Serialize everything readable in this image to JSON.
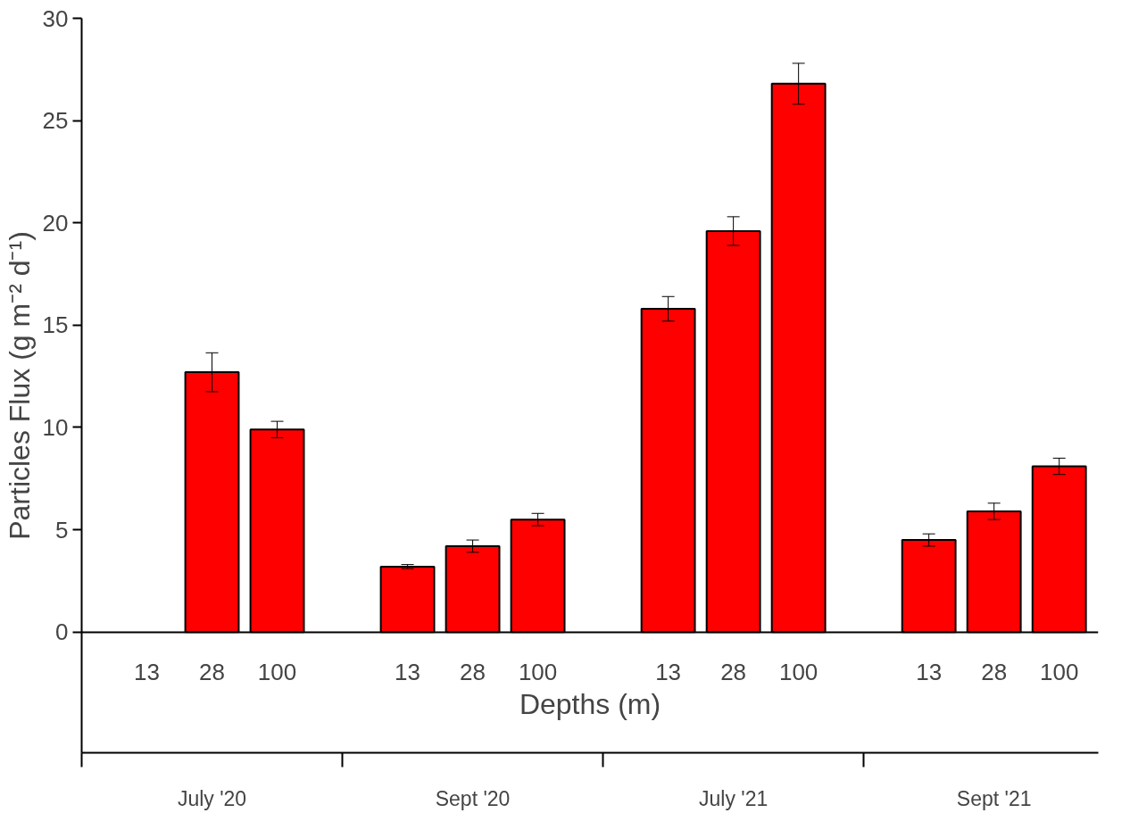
{
  "chart_data": {
    "type": "bar",
    "xlabel": "Depths (m)",
    "ylabel": "Particles Flux (g m⁻² d⁻¹)",
    "categories": [
      "13",
      "28",
      "100",
      "13",
      "28",
      "100",
      "13",
      "28",
      "100",
      "13",
      "28",
      "100"
    ],
    "values": [
      null,
      12.7,
      9.9,
      3.2,
      4.2,
      5.5,
      15.8,
      19.6,
      26.8,
      4.5,
      5.9,
      8.1
    ],
    "errors": [
      null,
      0.95,
      0.4,
      0.1,
      0.3,
      0.3,
      0.6,
      0.7,
      1.0,
      0.3,
      0.4,
      0.4
    ],
    "color": "#ff0000",
    "annotations": [
      "July '20",
      "Sept '20",
      "July '21",
      "Sept '21"
    ],
    "ylim": [
      -5.9,
      30
    ],
    "yticks": [
      0,
      5,
      10,
      15,
      20,
      25,
      30
    ],
    "grid": false
  }
}
